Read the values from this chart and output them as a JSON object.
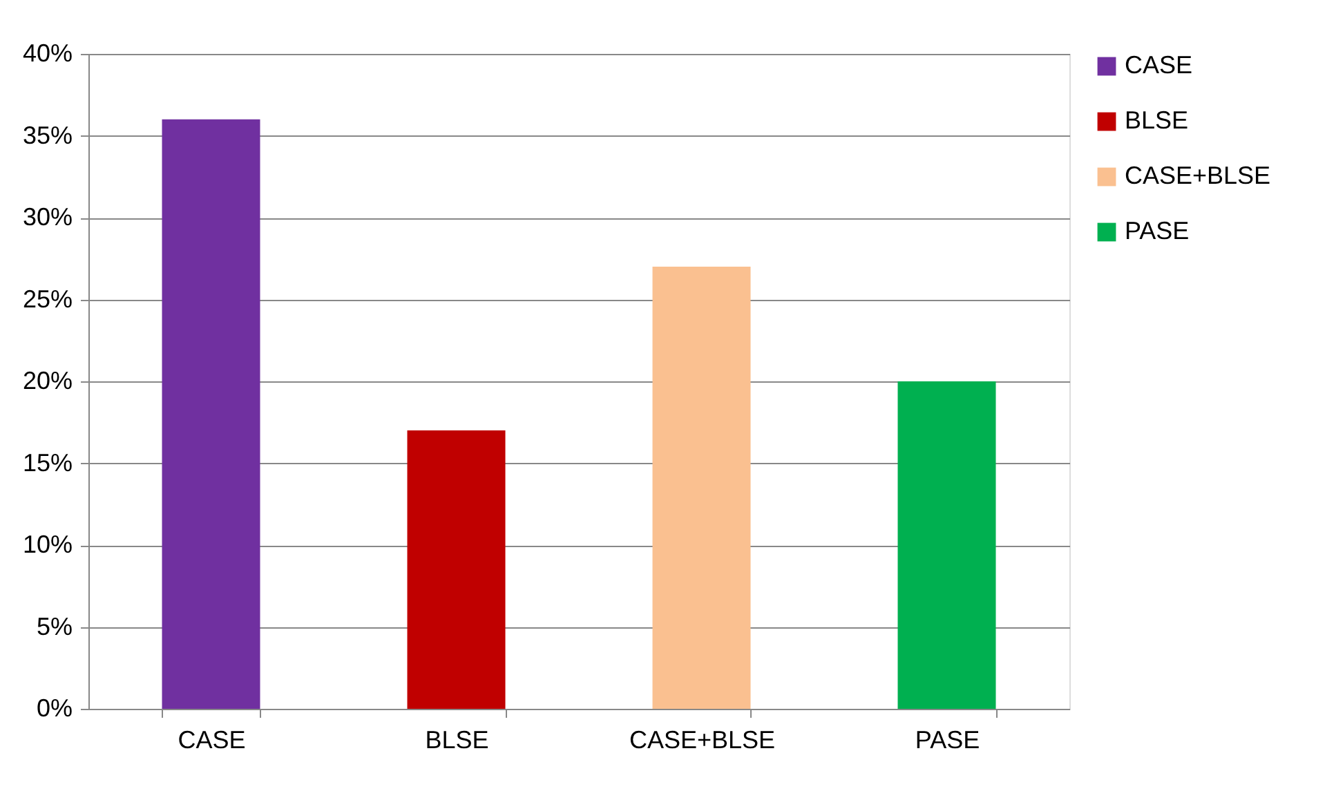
{
  "chart_data": {
    "type": "bar",
    "categories": [
      "CASE",
      "BLSE",
      "CASE+BLSE",
      "PASE"
    ],
    "series": [
      {
        "name": "CASE",
        "color": "#7030a0",
        "values": [
          36,
          null,
          null,
          null
        ]
      },
      {
        "name": "BLSE",
        "color": "#c00000",
        "values": [
          null,
          17,
          null,
          null
        ]
      },
      {
        "name": "CASE+BLSE",
        "color": "#fac090",
        "values": [
          null,
          null,
          27,
          null
        ]
      },
      {
        "name": "PASE",
        "color": "#00b050",
        "values": [
          null,
          null,
          null,
          20
        ]
      }
    ],
    "ylim": [
      0,
      40
    ],
    "yticks": [
      {
        "value": 0,
        "label": "0%"
      },
      {
        "value": 5,
        "label": "5%"
      },
      {
        "value": 10,
        "label": "10%"
      },
      {
        "value": 15,
        "label": "15%"
      },
      {
        "value": 20,
        "label": "20%"
      },
      {
        "value": 25,
        "label": "25%"
      },
      {
        "value": 30,
        "label": "30%"
      },
      {
        "value": 35,
        "label": "35%"
      },
      {
        "value": 40,
        "label": "40%"
      }
    ],
    "grid": "y",
    "legend": "right"
  }
}
